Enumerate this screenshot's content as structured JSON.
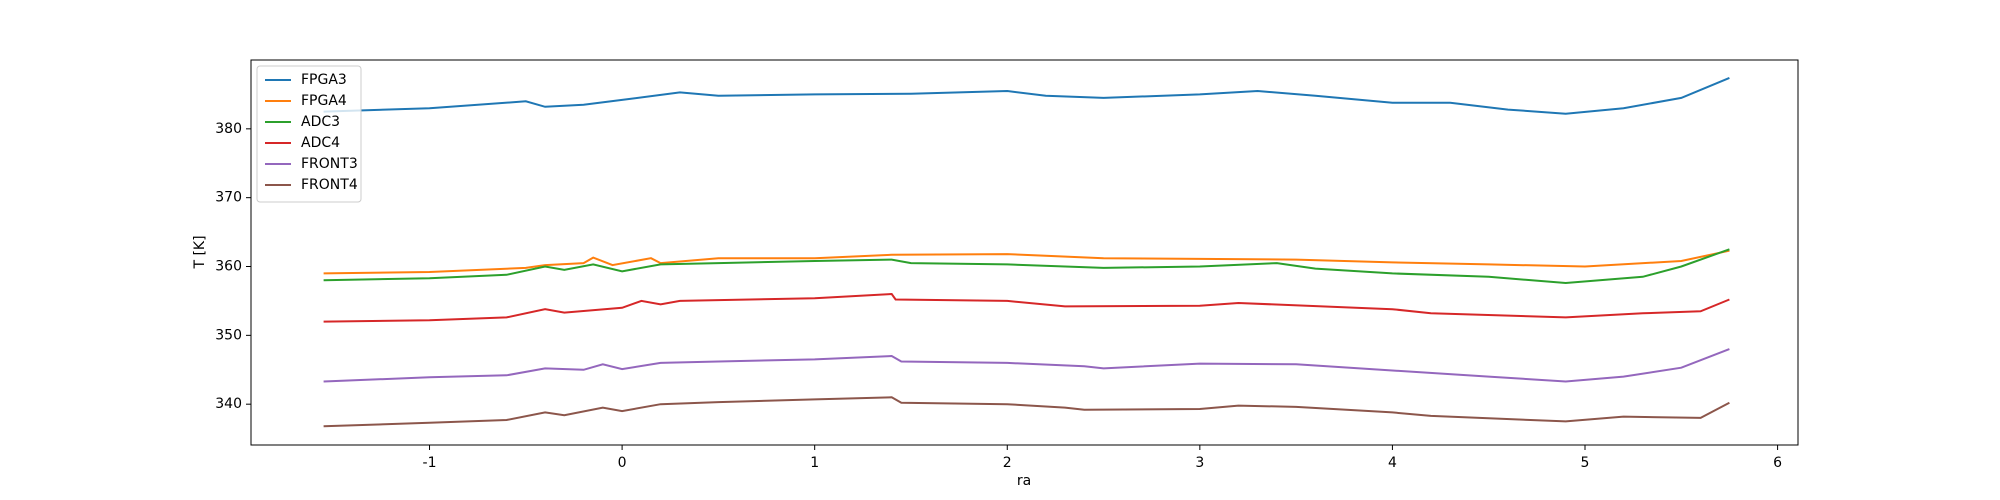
{
  "chart_data": {
    "type": "line",
    "xlabel": "ra",
    "ylabel": "T [K]",
    "xlim": [
      -1.927,
      6.106
    ],
    "xticks": [
      -1,
      0,
      1,
      2,
      3,
      4,
      5,
      6
    ],
    "ylim": [
      334.07,
      390
    ],
    "yticks": [
      340,
      350,
      360,
      370,
      380
    ],
    "legend": "upper left",
    "grid": false,
    "series": [
      {
        "name": "FPGA3",
        "color": "#1f77b4",
        "x": [
          -1.55,
          -1,
          -0.5,
          -0.4,
          -0.2,
          0,
          0.3,
          0.5,
          1,
          1.5,
          2,
          2.2,
          2.5,
          3,
          3.3,
          3.6,
          4,
          4.3,
          4.6,
          4.9,
          5.2,
          5.5,
          5.75
        ],
        "values": [
          382.5,
          383,
          384,
          383.2,
          383.5,
          384.2,
          385.3,
          384.8,
          385,
          385.1,
          385.5,
          384.8,
          384.5,
          385,
          385.5,
          384.8,
          383.8,
          383.8,
          382.8,
          382.2,
          383,
          384.5,
          387.4
        ]
      },
      {
        "name": "FPGA4",
        "color": "#ff7f0e",
        "x": [
          -1.55,
          -1,
          -0.5,
          -0.4,
          -0.2,
          -0.15,
          -0.05,
          0.15,
          0.2,
          0.5,
          1,
          1.4,
          2,
          2.5,
          3,
          3.5,
          4,
          4.5,
          5,
          5.5,
          5.75
        ],
        "values": [
          359,
          359.2,
          359.8,
          360.2,
          360.5,
          361.3,
          360.2,
          361.2,
          360.5,
          361.2,
          361.2,
          361.7,
          361.8,
          361.2,
          361.1,
          361,
          360.6,
          360.3,
          360,
          360.8,
          362.3
        ]
      },
      {
        "name": "ADC3",
        "color": "#2ca02c",
        "x": [
          -1.55,
          -1,
          -0.6,
          -0.4,
          -0.3,
          -0.15,
          0,
          0.2,
          0.5,
          1,
          1.4,
          1.5,
          2,
          2.5,
          3,
          3.4,
          3.6,
          4,
          4.5,
          4.9,
          5.3,
          5.5,
          5.75
        ],
        "values": [
          358,
          358.3,
          358.8,
          360,
          359.5,
          360.3,
          359.3,
          360.3,
          360.5,
          360.8,
          361,
          360.5,
          360.3,
          359.8,
          360,
          360.5,
          359.7,
          359,
          358.5,
          357.6,
          358.5,
          360,
          362.5
        ]
      },
      {
        "name": "ADC4",
        "color": "#d62728",
        "x": [
          -1.55,
          -1,
          -0.6,
          -0.4,
          -0.3,
          0,
          0.1,
          0.2,
          0.3,
          1,
          1.4,
          1.42,
          2,
          2.3,
          3,
          3.2,
          4,
          4.2,
          4.9,
          5.3,
          5.6,
          5.75
        ],
        "values": [
          352,
          352.2,
          352.6,
          353.8,
          353.3,
          354,
          355,
          354.5,
          355,
          355.4,
          356,
          355.2,
          355,
          354.2,
          354.3,
          354.7,
          353.8,
          353.2,
          352.6,
          353.2,
          353.5,
          355.2
        ]
      },
      {
        "name": "FRONT3",
        "color": "#9467bd",
        "x": [
          -1.55,
          -1,
          -0.6,
          -0.4,
          -0.2,
          -0.1,
          0,
          0.2,
          0.5,
          1,
          1.4,
          1.45,
          2,
          2.4,
          2.5,
          3,
          3.5,
          4,
          4.5,
          4.9,
          5.2,
          5.5,
          5.75
        ],
        "values": [
          343.3,
          343.9,
          344.2,
          345.2,
          345,
          345.8,
          345.1,
          346,
          346.2,
          346.5,
          347,
          346.2,
          346,
          345.5,
          345.2,
          345.9,
          345.8,
          344.9,
          344,
          343.3,
          344,
          345.3,
          348
        ]
      },
      {
        "name": "FRONT4",
        "color": "#8c564b",
        "x": [
          -1.55,
          -1,
          -0.6,
          -0.4,
          -0.3,
          -0.1,
          0,
          0.2,
          0.5,
          1,
          1.4,
          1.45,
          2,
          2.3,
          2.4,
          3,
          3.2,
          3.5,
          4,
          4.2,
          4.9,
          5.2,
          5.6,
          5.75
        ],
        "values": [
          336.8,
          337.3,
          337.7,
          338.8,
          338.4,
          339.5,
          339,
          340,
          340.3,
          340.7,
          341,
          340.2,
          340,
          339.5,
          339.2,
          339.3,
          339.8,
          339.6,
          338.8,
          338.3,
          337.5,
          338.2,
          338,
          340.2
        ]
      }
    ]
  }
}
